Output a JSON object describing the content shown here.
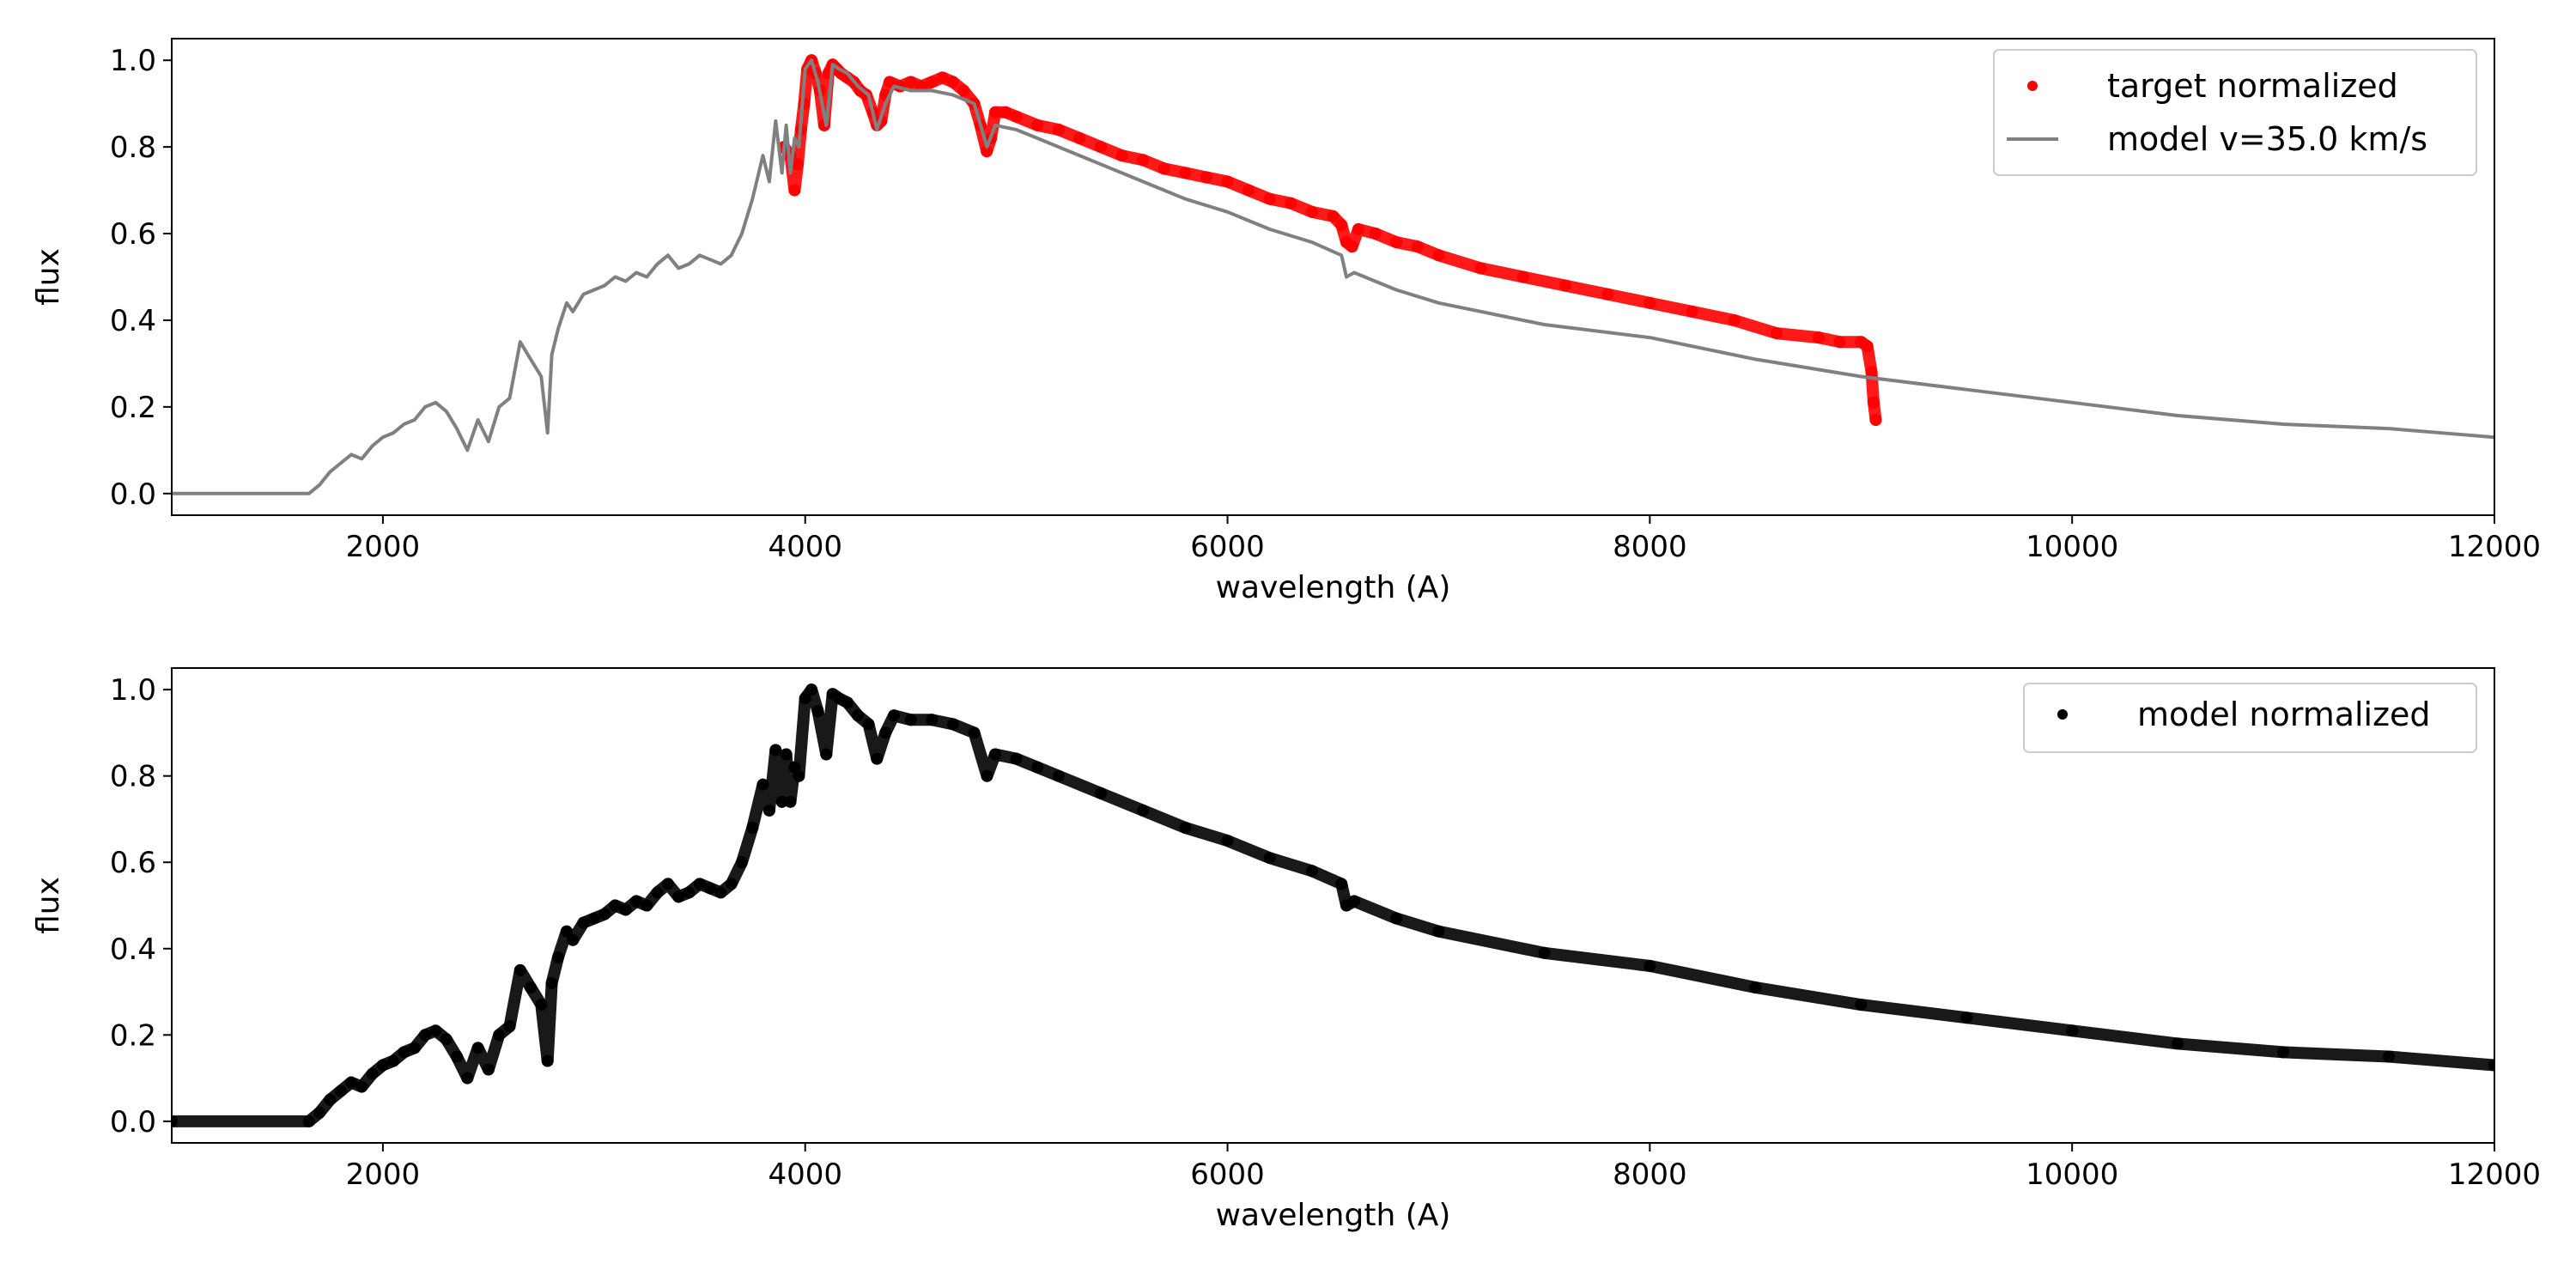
{
  "chart_data": [
    {
      "type": "line",
      "xlabel": "wavelength (A)",
      "ylabel": "flux",
      "xlim": [
        1000,
        12000
      ],
      "ylim": [
        -0.05,
        1.05
      ],
      "xticks": [
        2000,
        4000,
        6000,
        8000,
        10000,
        12000
      ],
      "yticks": [
        0.0,
        0.2,
        0.4,
        0.6,
        0.8,
        1.0
      ],
      "legend_position": "top-right",
      "series": [
        {
          "name": "target normalized",
          "style": "points",
          "color": "#ff0000",
          "x": [
            3900,
            3930,
            3950,
            3965,
            3980,
            3995,
            4010,
            4030,
            4050,
            4070,
            4090,
            4110,
            4130,
            4150,
            4170,
            4200,
            4230,
            4260,
            4290,
            4320,
            4340,
            4360,
            4380,
            4400,
            4450,
            4500,
            4550,
            4600,
            4650,
            4700,
            4750,
            4800,
            4830,
            4860,
            4880,
            4900,
            4950,
            5000,
            5100,
            5200,
            5300,
            5400,
            5500,
            5600,
            5700,
            5800,
            5900,
            6000,
            6100,
            6200,
            6300,
            6400,
            6500,
            6540,
            6563,
            6590,
            6620,
            6700,
            6800,
            6900,
            7000,
            7200,
            7400,
            7600,
            7800,
            8000,
            8200,
            8400,
            8600,
            8800,
            8900,
            9000,
            9030,
            9050,
            9060,
            9070
          ],
          "y": [
            0.8,
            0.78,
            0.7,
            0.76,
            0.84,
            0.9,
            0.98,
            1.0,
            0.97,
            0.93,
            0.85,
            0.97,
            0.99,
            0.98,
            0.97,
            0.96,
            0.95,
            0.93,
            0.92,
            0.88,
            0.85,
            0.86,
            0.92,
            0.95,
            0.94,
            0.95,
            0.94,
            0.95,
            0.96,
            0.95,
            0.93,
            0.9,
            0.85,
            0.79,
            0.82,
            0.88,
            0.88,
            0.87,
            0.85,
            0.84,
            0.82,
            0.8,
            0.78,
            0.77,
            0.75,
            0.74,
            0.73,
            0.72,
            0.7,
            0.68,
            0.67,
            0.65,
            0.64,
            0.62,
            0.58,
            0.57,
            0.61,
            0.6,
            0.58,
            0.57,
            0.55,
            0.52,
            0.5,
            0.48,
            0.46,
            0.44,
            0.42,
            0.4,
            0.37,
            0.36,
            0.35,
            0.35,
            0.34,
            0.28,
            0.21,
            0.17
          ]
        },
        {
          "name": "model v=35.0 km/s",
          "style": "line",
          "color": "#808080",
          "x": [
            1000,
            1650,
            1700,
            1750,
            1800,
            1850,
            1900,
            1950,
            2000,
            2050,
            2100,
            2150,
            2200,
            2250,
            2300,
            2350,
            2400,
            2450,
            2500,
            2550,
            2600,
            2650,
            2700,
            2750,
            2780,
            2800,
            2830,
            2870,
            2900,
            2950,
            3000,
            3050,
            3100,
            3150,
            3200,
            3250,
            3300,
            3350,
            3400,
            3450,
            3500,
            3550,
            3600,
            3650,
            3700,
            3750,
            3800,
            3830,
            3860,
            3890,
            3910,
            3930,
            3950,
            3970,
            4000,
            4030,
            4060,
            4100,
            4130,
            4160,
            4200,
            4250,
            4300,
            4340,
            4380,
            4420,
            4500,
            4600,
            4700,
            4800,
            4861,
            4900,
            5000,
            5100,
            5200,
            5400,
            5600,
            5800,
            6000,
            6200,
            6400,
            6540,
            6563,
            6600,
            6800,
            7000,
            7500,
            8000,
            8500,
            9000,
            9500,
            10000,
            10500,
            11000,
            11500,
            12000
          ],
          "y": [
            0.0,
            0.0,
            0.02,
            0.05,
            0.07,
            0.09,
            0.08,
            0.11,
            0.13,
            0.14,
            0.16,
            0.17,
            0.2,
            0.21,
            0.19,
            0.15,
            0.1,
            0.17,
            0.12,
            0.2,
            0.22,
            0.35,
            0.31,
            0.27,
            0.14,
            0.32,
            0.38,
            0.44,
            0.42,
            0.46,
            0.47,
            0.48,
            0.5,
            0.49,
            0.51,
            0.5,
            0.53,
            0.55,
            0.52,
            0.53,
            0.55,
            0.54,
            0.53,
            0.55,
            0.6,
            0.68,
            0.78,
            0.72,
            0.86,
            0.74,
            0.85,
            0.74,
            0.82,
            0.8,
            0.98,
            1.0,
            0.95,
            0.85,
            0.99,
            0.98,
            0.97,
            0.94,
            0.92,
            0.84,
            0.9,
            0.94,
            0.93,
            0.93,
            0.92,
            0.9,
            0.8,
            0.85,
            0.84,
            0.82,
            0.8,
            0.76,
            0.72,
            0.68,
            0.65,
            0.61,
            0.58,
            0.55,
            0.5,
            0.51,
            0.47,
            0.44,
            0.39,
            0.36,
            0.31,
            0.27,
            0.24,
            0.21,
            0.18,
            0.16,
            0.15,
            0.13
          ]
        }
      ]
    },
    {
      "type": "scatter",
      "xlabel": "wavelength (A)",
      "ylabel": "flux",
      "xlim": [
        1000,
        12000
      ],
      "ylim": [
        -0.05,
        1.05
      ],
      "xticks": [
        2000,
        4000,
        6000,
        8000,
        10000,
        12000
      ],
      "yticks": [
        0.0,
        0.2,
        0.4,
        0.6,
        0.8,
        1.0
      ],
      "legend_position": "top-right",
      "series": [
        {
          "name": "model normalized",
          "style": "points",
          "color": "#000000",
          "x": [
            1000,
            1650,
            1700,
            1750,
            1800,
            1850,
            1900,
            1950,
            2000,
            2050,
            2100,
            2150,
            2200,
            2250,
            2300,
            2350,
            2400,
            2450,
            2500,
            2550,
            2600,
            2650,
            2700,
            2750,
            2780,
            2800,
            2830,
            2870,
            2900,
            2950,
            3000,
            3050,
            3100,
            3150,
            3200,
            3250,
            3300,
            3350,
            3400,
            3450,
            3500,
            3550,
            3600,
            3650,
            3700,
            3750,
            3800,
            3830,
            3860,
            3890,
            3910,
            3930,
            3950,
            3970,
            4000,
            4030,
            4060,
            4100,
            4130,
            4160,
            4200,
            4250,
            4300,
            4340,
            4380,
            4420,
            4500,
            4600,
            4700,
            4800,
            4861,
            4900,
            5000,
            5100,
            5200,
            5400,
            5600,
            5800,
            6000,
            6200,
            6400,
            6540,
            6563,
            6600,
            6800,
            7000,
            7500,
            8000,
            8500,
            9000,
            9500,
            10000,
            10500,
            11000,
            11500,
            12000
          ],
          "y": [
            0.0,
            0.0,
            0.02,
            0.05,
            0.07,
            0.09,
            0.08,
            0.11,
            0.13,
            0.14,
            0.16,
            0.17,
            0.2,
            0.21,
            0.19,
            0.15,
            0.1,
            0.17,
            0.12,
            0.2,
            0.22,
            0.35,
            0.31,
            0.27,
            0.14,
            0.32,
            0.38,
            0.44,
            0.42,
            0.46,
            0.47,
            0.48,
            0.5,
            0.49,
            0.51,
            0.5,
            0.53,
            0.55,
            0.52,
            0.53,
            0.55,
            0.54,
            0.53,
            0.55,
            0.6,
            0.68,
            0.78,
            0.72,
            0.86,
            0.74,
            0.85,
            0.74,
            0.82,
            0.8,
            0.98,
            1.0,
            0.95,
            0.85,
            0.99,
            0.98,
            0.97,
            0.94,
            0.92,
            0.84,
            0.9,
            0.94,
            0.93,
            0.93,
            0.92,
            0.9,
            0.8,
            0.85,
            0.84,
            0.82,
            0.8,
            0.76,
            0.72,
            0.68,
            0.65,
            0.61,
            0.58,
            0.55,
            0.5,
            0.51,
            0.47,
            0.44,
            0.39,
            0.36,
            0.31,
            0.27,
            0.24,
            0.21,
            0.18,
            0.16,
            0.15,
            0.13
          ]
        }
      ]
    }
  ]
}
